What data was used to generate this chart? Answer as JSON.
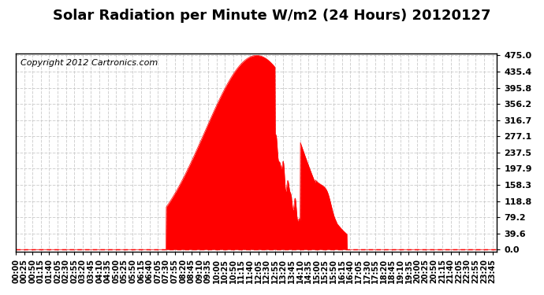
{
  "title": "Solar Radiation per Minute W/m2 (24 Hours) 20120127",
  "copyright_text": "Copyright 2012 Cartronics.com",
  "yticks": [
    0.0,
    39.6,
    79.2,
    118.8,
    158.3,
    197.9,
    237.5,
    277.1,
    316.7,
    356.2,
    395.8,
    435.4,
    475.0
  ],
  "ymax": 475.0,
  "ymin": 0.0,
  "fill_color": "#FF0000",
  "line_color": "#FF0000",
  "dashed_line_color": "#FF0000",
  "background_color": "#FFFFFF",
  "grid_color": "#AAAAAA",
  "title_fontsize": 13,
  "copyright_fontsize": 8,
  "tick_fontsize": 7,
  "ytick_fontsize": 8,
  "total_minutes": 1440
}
